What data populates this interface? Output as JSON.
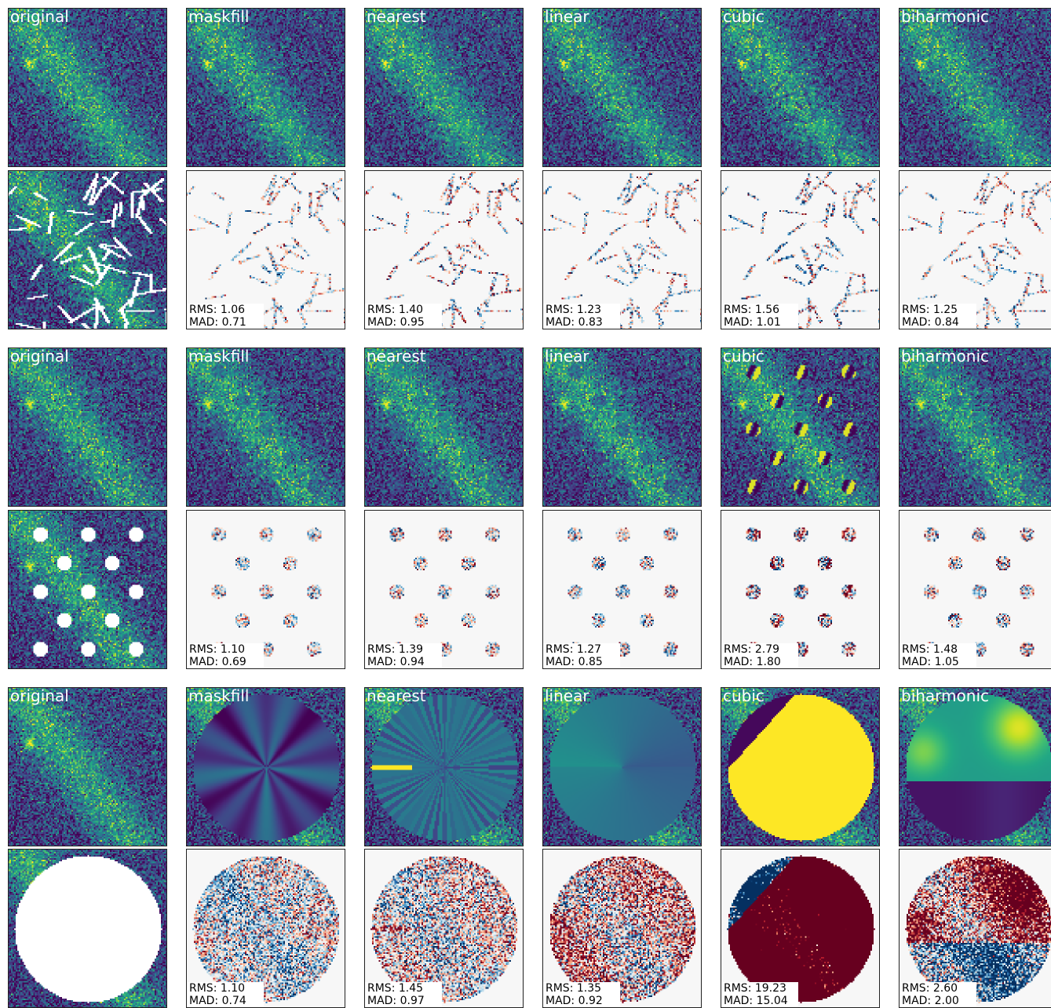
{
  "figure": {
    "methods": [
      "original",
      "maskfill",
      "nearest",
      "linear",
      "cubic",
      "biharmonic"
    ]
  },
  "colormaps": {
    "image": "viridis",
    "residual": "RdBu_r"
  },
  "colors": {
    "mask": "#ffffff",
    "frame": "#222222",
    "residual_zero": "#f7f7f7"
  },
  "chart_data": [
    {
      "type": "heatmap",
      "mask": "random line segments",
      "panels": [
        {
          "method": "original"
        },
        {
          "method": "maskfill",
          "rms_text": "RMS: 1.06",
          "mad_text": "MAD: 0.71",
          "rms": 1.06,
          "mad": 0.71
        },
        {
          "method": "nearest",
          "rms_text": "RMS: 1.40",
          "mad_text": "MAD: 0.95",
          "rms": 1.4,
          "mad": 0.95
        },
        {
          "method": "linear",
          "rms_text": "RMS: 1.23",
          "mad_text": "MAD: 0.83",
          "rms": 1.23,
          "mad": 0.83
        },
        {
          "method": "cubic",
          "rms_text": "RMS: 1.56",
          "mad_text": "MAD: 1.01",
          "rms": 1.56,
          "mad": 1.01
        },
        {
          "method": "biharmonic",
          "rms_text": "RMS: 1.25",
          "mad_text": "MAD: 0.84",
          "rms": 1.25,
          "mad": 0.84
        }
      ]
    },
    {
      "type": "heatmap",
      "mask": "grid of small circles",
      "panels": [
        {
          "method": "original"
        },
        {
          "method": "maskfill",
          "rms_text": "RMS: 1.10",
          "mad_text": "MAD: 0.69",
          "rms": 1.1,
          "mad": 0.69
        },
        {
          "method": "nearest",
          "rms_text": "RMS: 1.39",
          "mad_text": "MAD: 0.94",
          "rms": 1.39,
          "mad": 0.94
        },
        {
          "method": "linear",
          "rms_text": "RMS: 1.27",
          "mad_text": "MAD: 0.85",
          "rms": 1.27,
          "mad": 0.85
        },
        {
          "method": "cubic",
          "rms_text": "RMS: 2.79",
          "mad_text": "MAD: 1.80",
          "rms": 2.79,
          "mad": 1.8
        },
        {
          "method": "biharmonic",
          "rms_text": "RMS: 1.48",
          "mad_text": "MAD: 1.05",
          "rms": 1.48,
          "mad": 1.05
        }
      ]
    },
    {
      "type": "heatmap",
      "mask": "large central circle",
      "panels": [
        {
          "method": "original"
        },
        {
          "method": "maskfill",
          "rms_text": "RMS: 1.10",
          "mad_text": "MAD: 0.74",
          "rms": 1.1,
          "mad": 0.74
        },
        {
          "method": "nearest",
          "rms_text": "RMS: 1.45",
          "mad_text": "MAD: 0.97",
          "rms": 1.45,
          "mad": 0.97
        },
        {
          "method": "linear",
          "rms_text": "RMS: 1.35",
          "mad_text": "MAD: 0.92",
          "rms": 1.35,
          "mad": 0.92
        },
        {
          "method": "cubic",
          "rms_text": "RMS: 19.23",
          "mad_text": "MAD: 15.04",
          "rms": 19.23,
          "mad": 15.04
        },
        {
          "method": "biharmonic",
          "rms_text": "RMS: 2.60",
          "mad_text": "MAD: 2.00",
          "rms": 2.6,
          "mad": 2.0
        }
      ]
    }
  ]
}
